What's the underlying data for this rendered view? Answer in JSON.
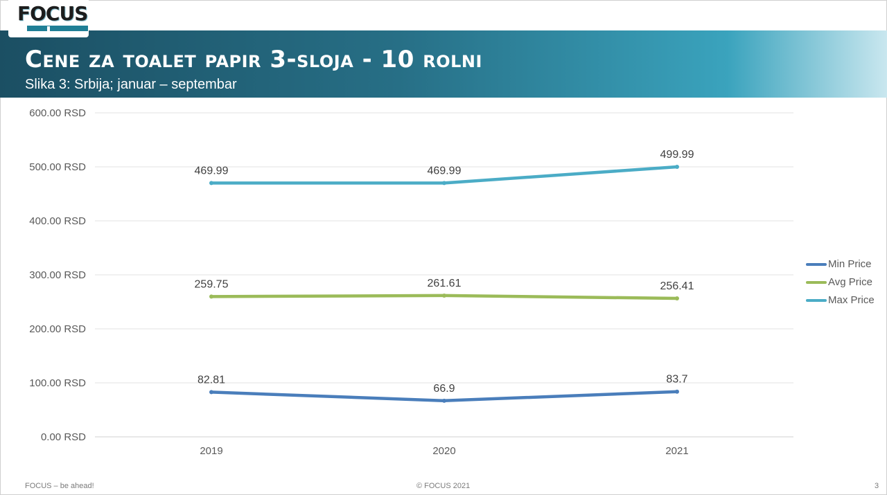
{
  "header": {
    "logo_text": "FOCUS",
    "title": "Cene za toalet papir 3-sloja - 10 rolni",
    "subtitle": "Slika 3: Srbija; januar – septembar"
  },
  "footer": {
    "left": "FOCUS – be ahead!",
    "center": "© FOCUS 2021",
    "page_number": "3"
  },
  "chart_data": {
    "type": "line",
    "title": "",
    "xlabel": "",
    "ylabel": "",
    "categories": [
      "2019",
      "2020",
      "2021"
    ],
    "ylim": [
      0,
      600
    ],
    "ytick_labels": [
      "0.00 RSD",
      "100.00 RSD",
      "200.00 RSD",
      "300.00 RSD",
      "400.00 RSD",
      "500.00 RSD",
      "600.00 RSD"
    ],
    "grid": true,
    "legend_position": "right",
    "series": [
      {
        "name": "Min Price",
        "values": [
          82.81,
          66.9,
          83.7
        ],
        "labels": [
          "82.81",
          "66.9",
          "83.7"
        ],
        "color": "#4a7ebb"
      },
      {
        "name": "Avg Price",
        "values": [
          259.75,
          261.61,
          256.41
        ],
        "labels": [
          "259.75",
          "261.61",
          "256.41"
        ],
        "color": "#9bbb59"
      },
      {
        "name": "Max Price",
        "values": [
          469.99,
          469.99,
          499.99
        ],
        "labels": [
          "469.99",
          "469.99",
          "499.99"
        ],
        "color": "#4bacc6"
      }
    ]
  }
}
